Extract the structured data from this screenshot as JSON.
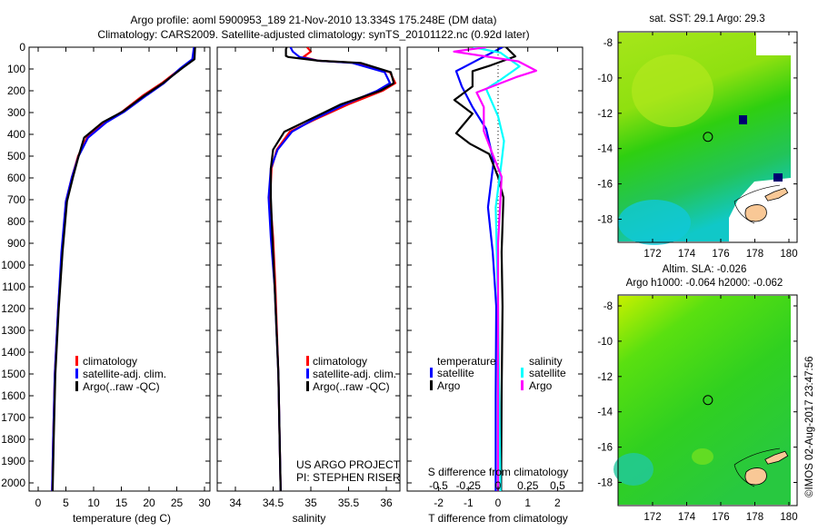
{
  "title": {
    "line1": "Argo profile: aoml 5900953_189 21-Nov-2010 13.334S 175.248E (DM data)",
    "line2": "Climatology: CARS2009. Satellite-adjusted climatology: synTS_20101122.nc (0.92d later)"
  },
  "colors": {
    "climatology": "#ff0000",
    "satellite": "#0000ff",
    "argo": "#000000",
    "s_satellite": "#00ffff",
    "s_argo": "#ff00ff",
    "land": "#f9c896"
  },
  "chart_data": [
    {
      "type": "line",
      "title": "",
      "xlabel": "temperature (deg C)",
      "ylabel": "",
      "xlim": [
        -1.6,
        31
      ],
      "ylim": [
        2050,
        0
      ],
      "xticks": [
        "0",
        "5",
        "10",
        "15",
        "20",
        "25",
        "30"
      ],
      "xtick_values": [
        0,
        5,
        10,
        15,
        20,
        25,
        30
      ],
      "yticks": [
        "0",
        "100",
        "200",
        "300",
        "400",
        "500",
        "600",
        "700",
        "800",
        "900",
        "1000",
        "1100",
        "1200",
        "1300",
        "1400",
        "1500",
        "1600",
        "1700",
        "1800",
        "1900",
        "2000"
      ],
      "legend": [
        "climatology",
        "satellite-adj. clim.",
        "Argo(..raw -QC)"
      ],
      "legend_placement": "lower-center",
      "series": [
        {
          "name": "climatology",
          "color": "#ff0000",
          "depth": [
            0,
            55,
            96,
            165,
            220,
            295,
            345,
            415,
            500,
            595,
            708,
            940,
            1200,
            1500,
            1800,
            2040
          ],
          "values": [
            28.2,
            27.9,
            25.8,
            22.3,
            19.0,
            15.2,
            12.0,
            8.8,
            7.2,
            6.1,
            5.0,
            4.3,
            3.6,
            3.0,
            2.7,
            2.5
          ]
        },
        {
          "name": "satellite-adj. clim.",
          "color": "#0000ff",
          "depth": [
            0,
            55,
            96,
            165,
            220,
            295,
            345,
            415,
            500,
            595,
            708,
            940,
            1200,
            1500,
            1800,
            2040
          ],
          "values": [
            28.1,
            27.8,
            25.7,
            22.7,
            19.6,
            15.6,
            12.3,
            9.0,
            7.3,
            6.1,
            5.0,
            4.2,
            3.6,
            3.0,
            2.7,
            2.5
          ]
        },
        {
          "name": "Argo(..raw -QC)",
          "color": "#000000",
          "depth": [
            0,
            55,
            96,
            165,
            220,
            295,
            345,
            415,
            500,
            595,
            708,
            940,
            1200,
            1500,
            1800,
            2040
          ],
          "values": [
            28.3,
            28.2,
            26.0,
            22.5,
            19.3,
            15.3,
            11.6,
            8.3,
            7.3,
            6.3,
            5.2,
            4.4,
            3.7,
            3.1,
            2.8,
            2.6
          ]
        }
      ]
    },
    {
      "type": "line",
      "xlabel": "salinity",
      "xlim": [
        33.77,
        36.18
      ],
      "ylim": [
        2050,
        0
      ],
      "xticks": [
        "34",
        "34.5",
        "35",
        "35.5",
        "36"
      ],
      "xtick_values": [
        34,
        34.5,
        35,
        35.5,
        36
      ],
      "legend": [
        "climatology",
        "satellite-adj. clim.",
        "Argo(..raw -QC)"
      ],
      "legend_placement": "lower-center",
      "annotation": [
        "US ARGO PROJECT",
        "PI: STEPHEN RISER"
      ],
      "series": [
        {
          "name": "climatology",
          "color": "#ff0000",
          "depth": [
            0,
            20,
            45,
            62,
            72,
            115,
            165,
            200,
            262,
            333,
            388,
            470,
            555,
            690,
            875,
            1100,
            1500,
            2040
          ],
          "values": [
            34.95,
            35.0,
            34.9,
            35.1,
            35.6,
            36.05,
            36.12,
            35.95,
            35.5,
            35.05,
            34.72,
            34.55,
            34.48,
            34.46,
            34.5,
            34.53,
            34.57,
            34.6
          ]
        },
        {
          "name": "satellite-adj. clim.",
          "color": "#0000ff",
          "depth": [
            0,
            20,
            45,
            62,
            72,
            115,
            165,
            200,
            262,
            333,
            388,
            470,
            555,
            690,
            875,
            1100,
            1500,
            2040
          ],
          "values": [
            34.73,
            34.76,
            34.85,
            35.1,
            35.55,
            35.98,
            36.05,
            35.88,
            35.45,
            35.03,
            34.75,
            34.56,
            34.47,
            34.44,
            34.47,
            34.52,
            34.57,
            34.6
          ]
        },
        {
          "name": "Argo(..raw -QC)",
          "color": "#000000",
          "depth": [
            0,
            10,
            40,
            45,
            62,
            72,
            115,
            165,
            200,
            262,
            333,
            388,
            470,
            555,
            690,
            875,
            1100,
            1500,
            2040
          ],
          "values": [
            34.68,
            34.67,
            34.67,
            34.7,
            35.1,
            35.66,
            36.06,
            36.1,
            35.92,
            35.4,
            34.98,
            34.65,
            34.5,
            34.47,
            34.47,
            34.49,
            34.52,
            34.57,
            34.6
          ]
        }
      ]
    },
    {
      "type": "line",
      "xlabel": "T difference from climatology",
      "xlabel2": "S difference from climatology",
      "xlim": [
        -3.06,
        2.83
      ],
      "xticks": [
        "-2",
        "-1",
        "0",
        "1",
        "2"
      ],
      "xtick_values": [
        -2,
        -1,
        0,
        1,
        2
      ],
      "sticks": [
        "-0.5",
        "-0.25",
        "0",
        "0.25",
        "0.5"
      ],
      "stick_values": [
        -0.5,
        -0.25,
        0,
        0.25,
        0.5
      ],
      "legend_headers": [
        "temperature",
        "salinity"
      ],
      "legend": [
        "satellite",
        "Argo",
        "satellite",
        "Argo"
      ],
      "legend_placement": "lower-center",
      "series": [
        {
          "name": "T satellite",
          "var": "T",
          "color": "#0000ff",
          "depth": [
            0,
            55,
            110,
            180,
            275,
            375,
            525,
            735,
            940,
            1190,
            1600,
            2040
          ],
          "values": [
            0.15,
            -0.64,
            -1.41,
            -1.22,
            -0.86,
            -0.4,
            -0.15,
            -0.34,
            -0.18,
            -0.06,
            -0.08,
            -0.08
          ]
        },
        {
          "name": "T Argo",
          "var": "T",
          "color": "#000000",
          "depth": [
            0,
            42,
            83,
            110,
            180,
            242,
            305,
            395,
            443,
            490,
            595,
            690,
            940,
            1190,
            1600,
            2040
          ],
          "values": [
            0.27,
            0.58,
            -0.24,
            -0.86,
            -0.86,
            -1.47,
            -0.86,
            -1.41,
            -0.95,
            -0.3,
            0,
            0.18,
            0.12,
            0.15,
            0.12,
            0.1
          ]
        },
        {
          "name": "S satellite",
          "var": "S",
          "color": "#00ffff",
          "depth": [
            0,
            25,
            88,
            150,
            192,
            317,
            430,
            525,
            735,
            1190,
            1600,
            2040
          ],
          "values": [
            -0.21,
            0.02,
            0.18,
            0.02,
            -0.1,
            0,
            0.05,
            0.03,
            -0.02,
            0,
            0.01,
            0.02
          ]
        },
        {
          "name": "S Argo",
          "var": "S",
          "color": "#ff00ff",
          "depth": [
            0,
            20,
            65,
            108,
            138,
            208,
            275,
            385,
            500,
            595,
            900,
            1400,
            2040
          ],
          "values": [
            -0.1,
            -0.37,
            0.17,
            0.32,
            0.15,
            -0.18,
            -0.12,
            -0.12,
            -0.04,
            0.03,
            0,
            0,
            0
          ]
        }
      ]
    }
  ],
  "maps": {
    "sst": {
      "title": "sat. SST: 29.1  Argo: 29.3",
      "lon_ticks": [
        "172",
        "174",
        "176",
        "178",
        "180"
      ],
      "lat_ticks": [
        "-8",
        "-10",
        "-12",
        "-14",
        "-16",
        "-18"
      ],
      "float_lon": 175.248,
      "float_lat": -13.334
    },
    "sla": {
      "title1": "Altim. SLA: -0.026",
      "title2": "Argo h1000: -0.064 h2000: -0.062",
      "lon_ticks": [
        "172",
        "174",
        "176",
        "178",
        "180"
      ],
      "lat_ticks": [
        "-8",
        "-10",
        "-12",
        "-14",
        "-16",
        "-18"
      ],
      "float_lon": 175.248,
      "float_lat": -13.334
    }
  },
  "footer": {
    "credit": "©IMOS 02-Aug-2017 23:47:56"
  }
}
